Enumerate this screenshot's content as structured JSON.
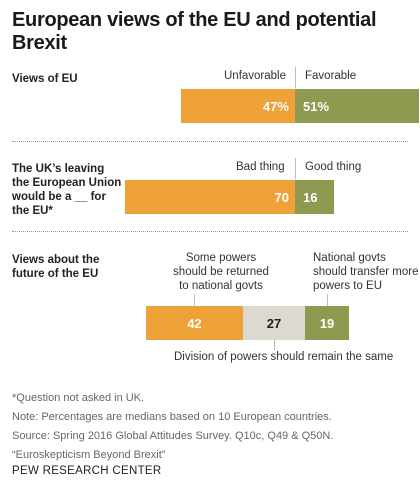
{
  "title": "European views of the EU and potential Brexit",
  "chart_data": [
    {
      "type": "bar",
      "label": "Views of EU",
      "categories": [
        "Unfavorable",
        "Favorable"
      ],
      "values": [
        47,
        51
      ],
      "value_labels": [
        "47%",
        "51%"
      ],
      "colors": [
        "#eda136",
        "#8e9a4f"
      ]
    },
    {
      "type": "bar",
      "label_lines": [
        "The UK’s leaving",
        "the European Union",
        "would be a __ for",
        "the EU*"
      ],
      "categories": [
        "Bad thing",
        "Good thing"
      ],
      "values": [
        70,
        16
      ],
      "value_labels": [
        "70",
        "16"
      ],
      "colors": [
        "#eda136",
        "#8e9a4f"
      ]
    },
    {
      "type": "bar",
      "label_lines": [
        "Views about the",
        "future of the EU"
      ],
      "categories": [
        "Some powers should be returned to national govts",
        "Division of powers should remain the same",
        "National govts should transfer more powers to EU"
      ],
      "category_lines": [
        [
          "Some powers",
          "should be returned",
          "to national govts"
        ],
        [
          "Division of powers should remain the same"
        ],
        [
          "National govts",
          "should transfer more",
          "powers to EU"
        ]
      ],
      "values": [
        42,
        27,
        19
      ],
      "value_labels": [
        "42",
        "27",
        "19"
      ],
      "colors": [
        "#eda136",
        "#dcdad0",
        "#8e9a4f"
      ]
    }
  ],
  "notes": [
    "*Question not asked in UK.",
    "Note: Percentages are medians based on 10 European countries.",
    "Source: Spring 2016 Global Attitudes Survey. Q10c, Q49 & Q50N.",
    "“Euroskepticism Beyond Brexit”"
  ],
  "credit": "PEW RESEARCH CENTER"
}
